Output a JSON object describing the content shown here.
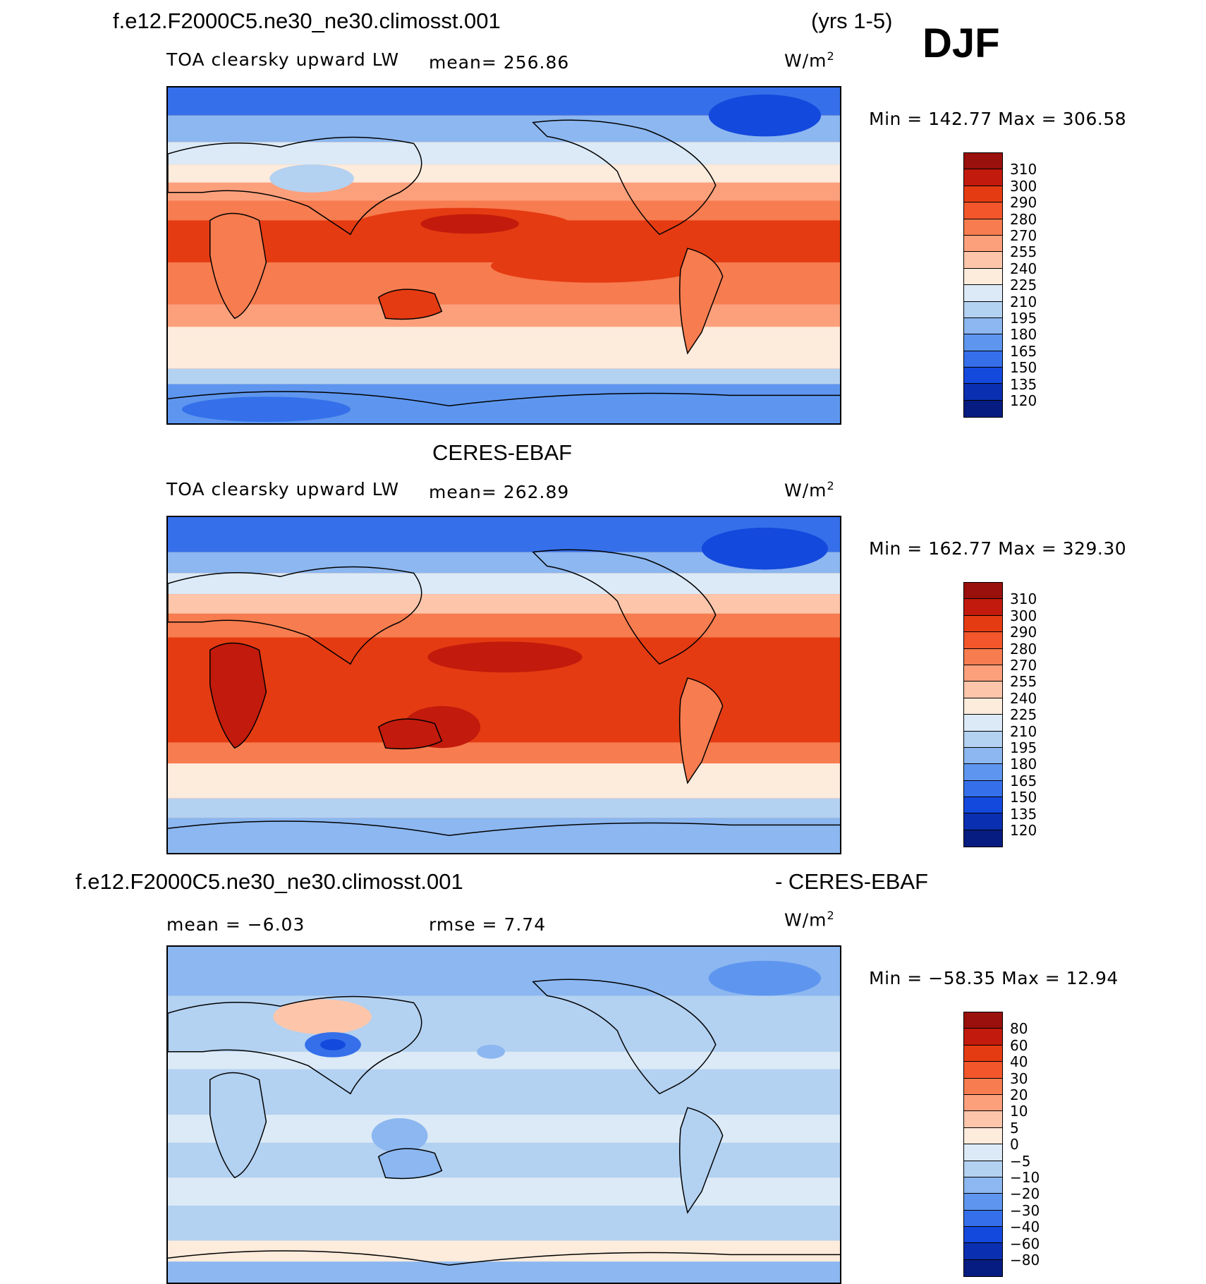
{
  "season": "DJF",
  "units": "W/m",
  "units_sup": "2",
  "panels": [
    {
      "title": "f.e12.F2000C5.ne30_ne30.climosst.001",
      "title_right": "(yrs 1-5)",
      "label": "TOA clearsky upward LW",
      "stat": "mean= 256.86",
      "minmax": "Min = 142.77 Max = 306.58",
      "colorbar": {
        "labels": [
          "310",
          "300",
          "290",
          "280",
          "270",
          "255",
          "240",
          "225",
          "210",
          "195",
          "180",
          "165",
          "150",
          "135",
          "120"
        ],
        "colors": [
          "#99100d",
          "#c21a0c",
          "#e53b12",
          "#f2562a",
          "#f77c4f",
          "#fca07c",
          "#fdc6ab",
          "#fdebdc",
          "#dbeaf6",
          "#b3d1f1",
          "#8cb7f0",
          "#5e96ef",
          "#3570ea",
          "#1449dd",
          "#0a2fb0",
          "#071c80"
        ]
      }
    },
    {
      "title": "CERES-EBAF",
      "label": "TOA clearsky upward LW",
      "stat": "mean= 262.89",
      "minmax": "Min = 162.77 Max = 329.30",
      "colorbar": {
        "labels": [
          "310",
          "300",
          "290",
          "280",
          "270",
          "255",
          "240",
          "225",
          "210",
          "195",
          "180",
          "165",
          "150",
          "135",
          "120"
        ],
        "colors": [
          "#99100d",
          "#c21a0c",
          "#e53b12",
          "#f2562a",
          "#f77c4f",
          "#fca07c",
          "#fdc6ab",
          "#fdebdc",
          "#dbeaf6",
          "#b3d1f1",
          "#8cb7f0",
          "#5e96ef",
          "#3570ea",
          "#1449dd",
          "#0a2fb0",
          "#071c80"
        ]
      }
    },
    {
      "title": "f.e12.F2000C5.ne30_ne30.climosst.001",
      "title_right": "- CERES-EBAF",
      "stat_mean": "mean =   −6.03",
      "stat_rmse": "rmse =     7.74",
      "minmax": "Min = −58.35 Max =   12.94",
      "colorbar": {
        "labels": [
          "80",
          "60",
          "40",
          "30",
          "20",
          "10",
          "5",
          "0",
          "−5",
          "−10",
          "−20",
          "−30",
          "−40",
          "−60",
          "−80"
        ],
        "colors": [
          "#99100d",
          "#c21a0c",
          "#e53b12",
          "#f2562a",
          "#f77c4f",
          "#fca07c",
          "#fdc6ab",
          "#fdebdc",
          "#dbeaf6",
          "#b3d1f1",
          "#8cb7f0",
          "#5e96ef",
          "#3570ea",
          "#1449dd",
          "#0a2fb0",
          "#071c80"
        ]
      }
    }
  ]
}
